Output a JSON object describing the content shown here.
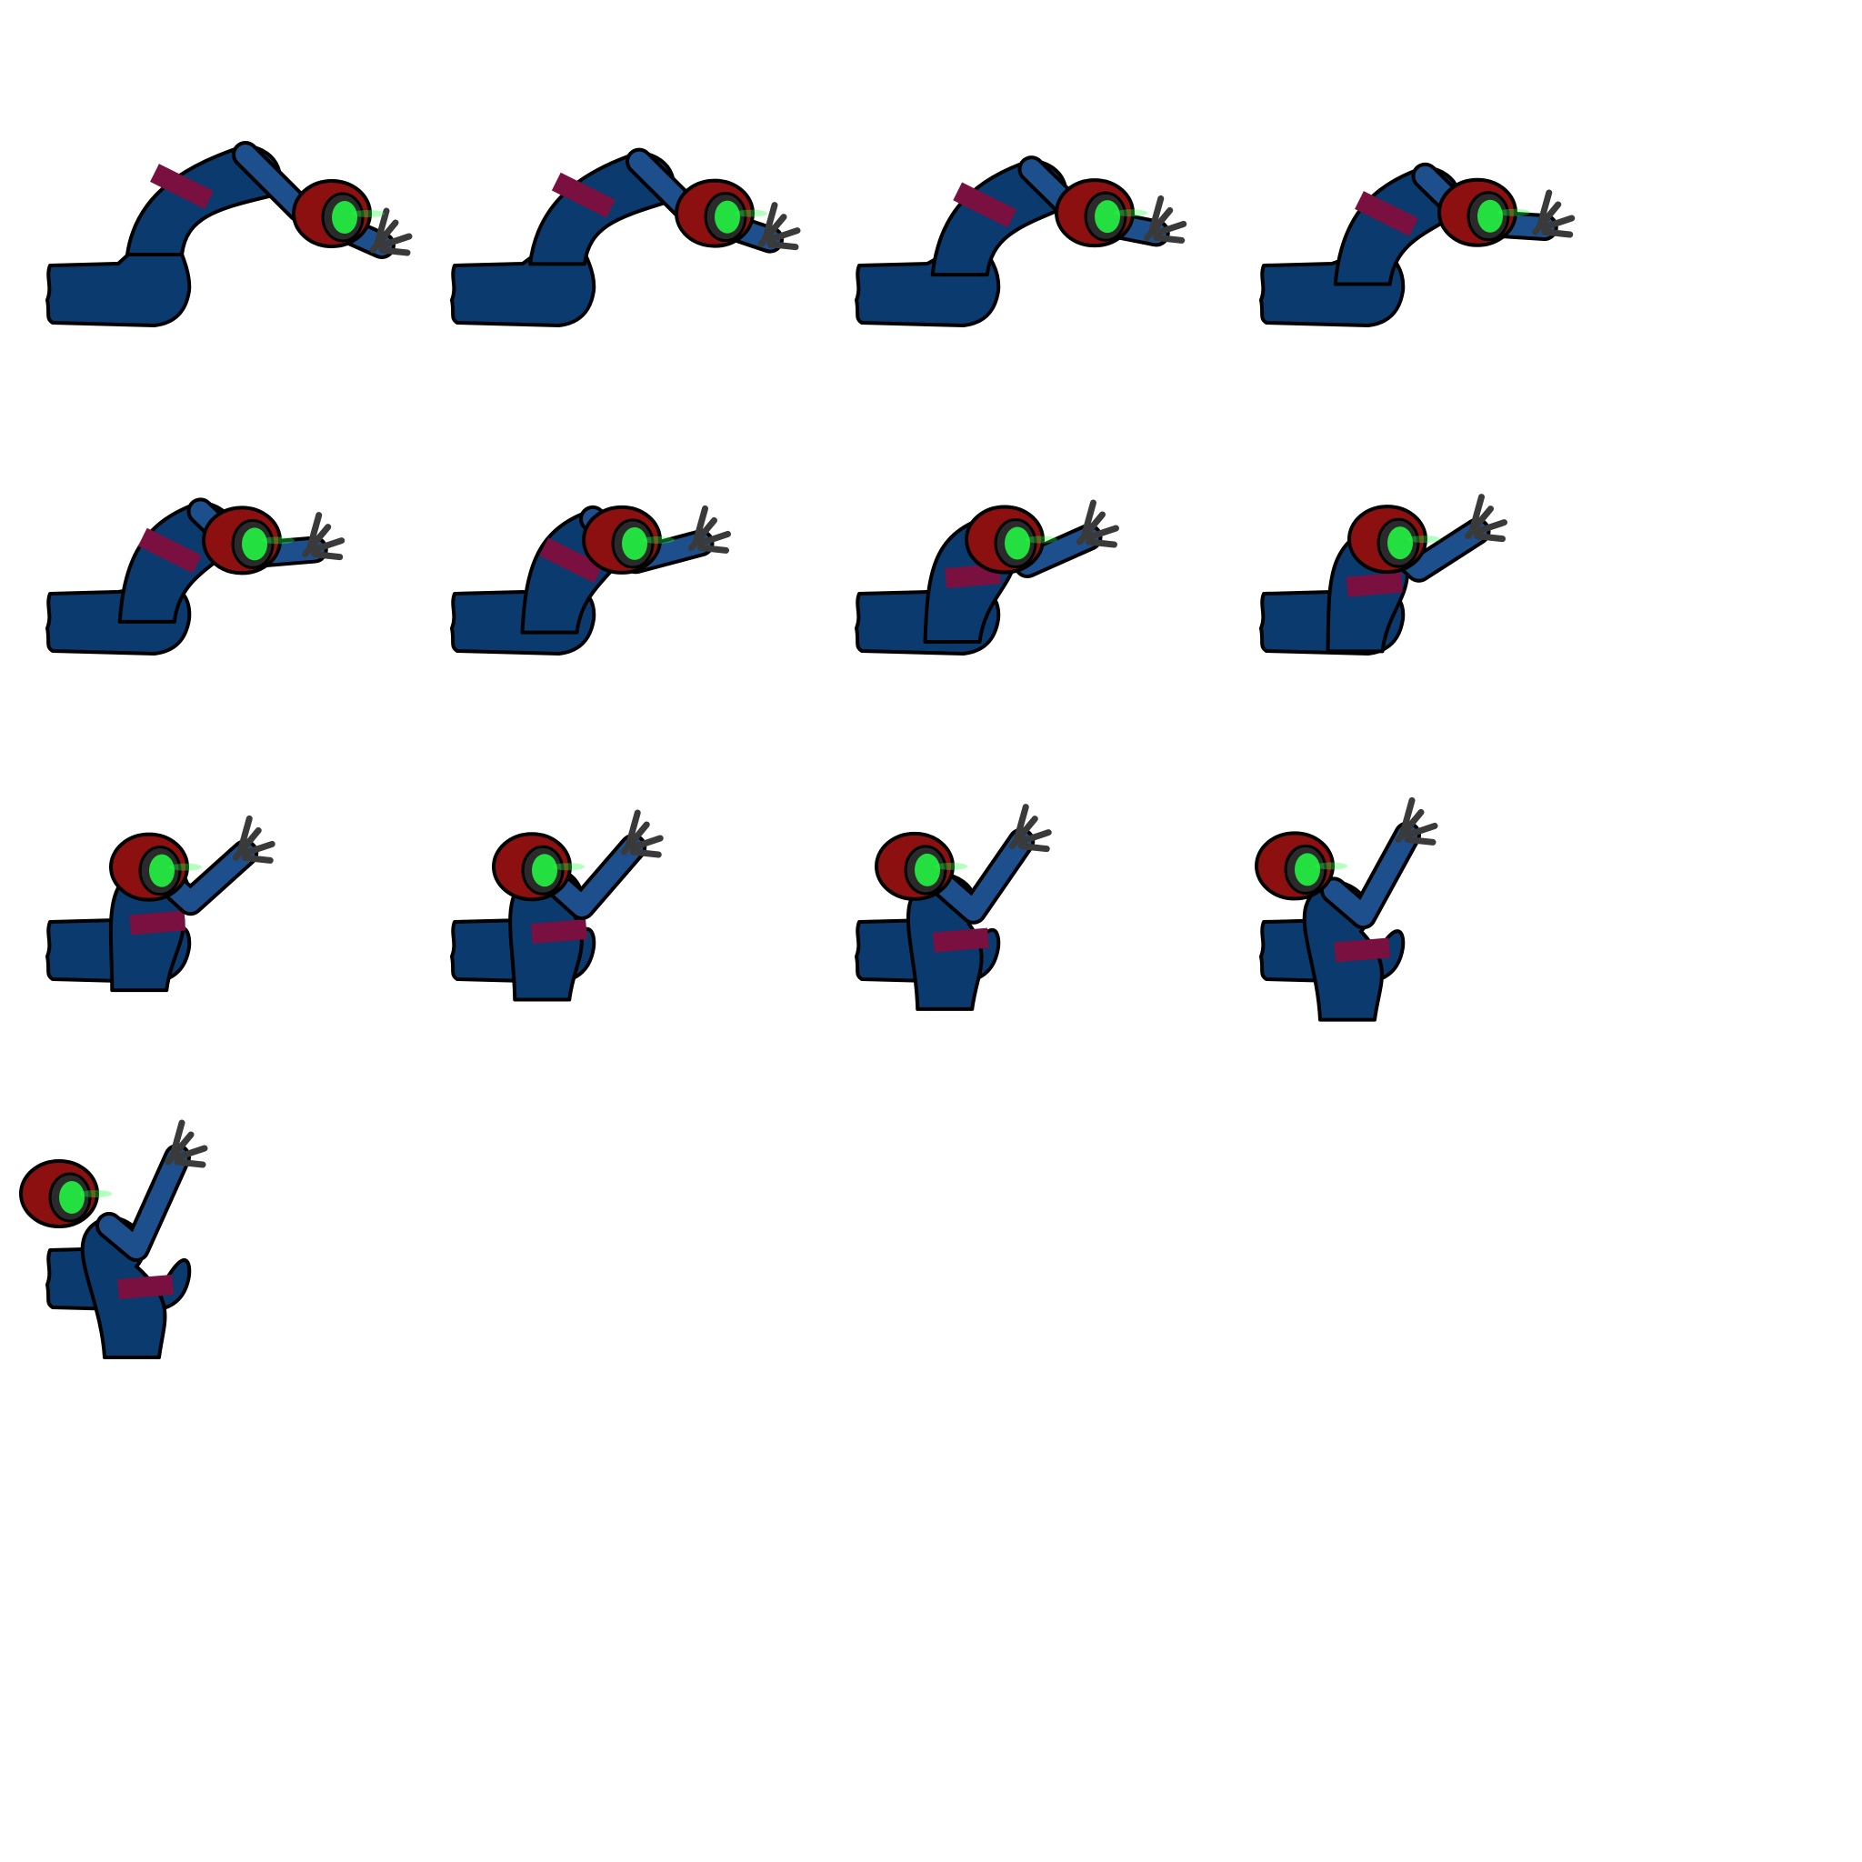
{
  "sprite_sheet": {
    "frame_count": 13,
    "columns": 4,
    "colors": {
      "background": "#ffffff",
      "suit": "#0a3a6e",
      "suit_shade": "#1d4f8c",
      "belt": "#7a1040",
      "hood": "#8c1010",
      "face": "#2a2a2a",
      "eyes": "#22ff44",
      "hands": "#3a3a3a",
      "outline": "#000000"
    },
    "frames": [
      {
        "label": "",
        "raise": 0.0
      },
      {
        "label": "",
        "raise": 0.08
      },
      {
        "label": "",
        "raise": 0.17
      },
      {
        "label": "",
        "raise": 0.25
      },
      {
        "label": "",
        "raise": 0.33
      },
      {
        "label": "",
        "raise": 0.42
      },
      {
        "label": "",
        "raise": 0.5
      },
      {
        "label": "",
        "raise": 0.58
      },
      {
        "label": "",
        "raise": 0.67
      },
      {
        "label": "",
        "raise": 0.75
      },
      {
        "label": "",
        "raise": 0.83
      },
      {
        "label": "",
        "raise": 0.92
      },
      {
        "label": "",
        "raise": 1.0
      }
    ]
  }
}
